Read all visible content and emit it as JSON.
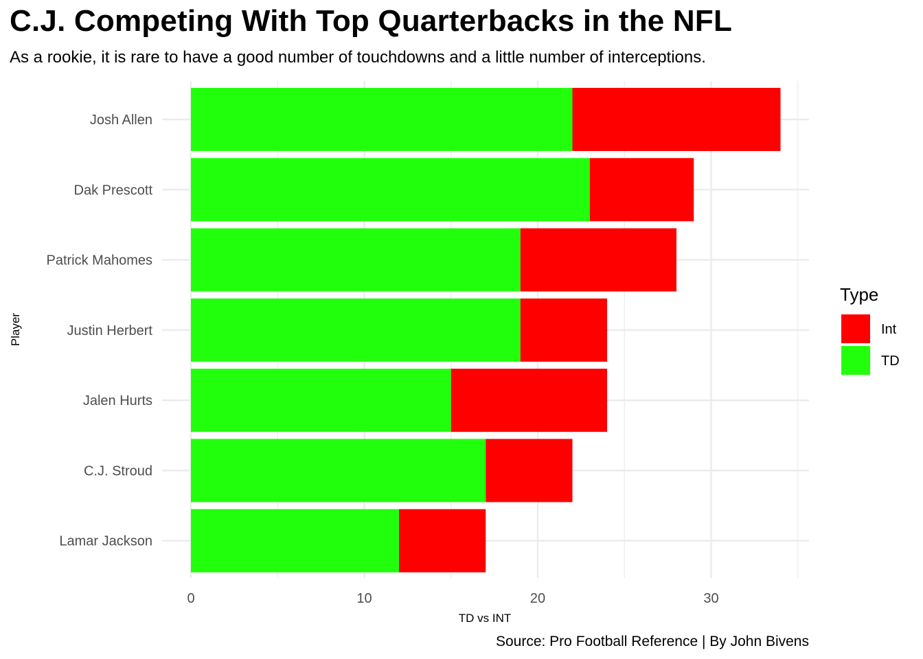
{
  "title": "C.J. Competing With Top Quarterbacks in the NFL",
  "subtitle": "As a rookie, it is rare to have a good number of touchdowns and a little number of interceptions.",
  "caption": "Source: Pro Football Reference | By John Bivens",
  "legend": {
    "title": "Type",
    "items": [
      {
        "label": "Int",
        "color": "#ff0000"
      },
      {
        "label": "TD",
        "color": "#22ff0c"
      }
    ]
  },
  "chart_data": {
    "type": "bar",
    "orientation": "horizontal",
    "stacked": true,
    "categories": [
      "Josh Allen",
      "Dak Prescott",
      "Patrick Mahomes",
      "Justin Herbert",
      "Jalen Hurts",
      "C.J. Stroud",
      "Lamar Jackson"
    ],
    "series": [
      {
        "name": "TD",
        "color": "#22ff0c",
        "values": [
          22,
          23,
          19,
          19,
          15,
          17,
          12
        ]
      },
      {
        "name": "Int",
        "color": "#ff0000",
        "values": [
          12,
          6,
          9,
          5,
          9,
          5,
          5
        ]
      }
    ],
    "xlabel": "TD vs INT",
    "ylabel": "Player",
    "xlim": [
      0,
      35.7
    ],
    "xticks": [
      0,
      10,
      20,
      30
    ],
    "grid": true,
    "legend_position": "right"
  }
}
